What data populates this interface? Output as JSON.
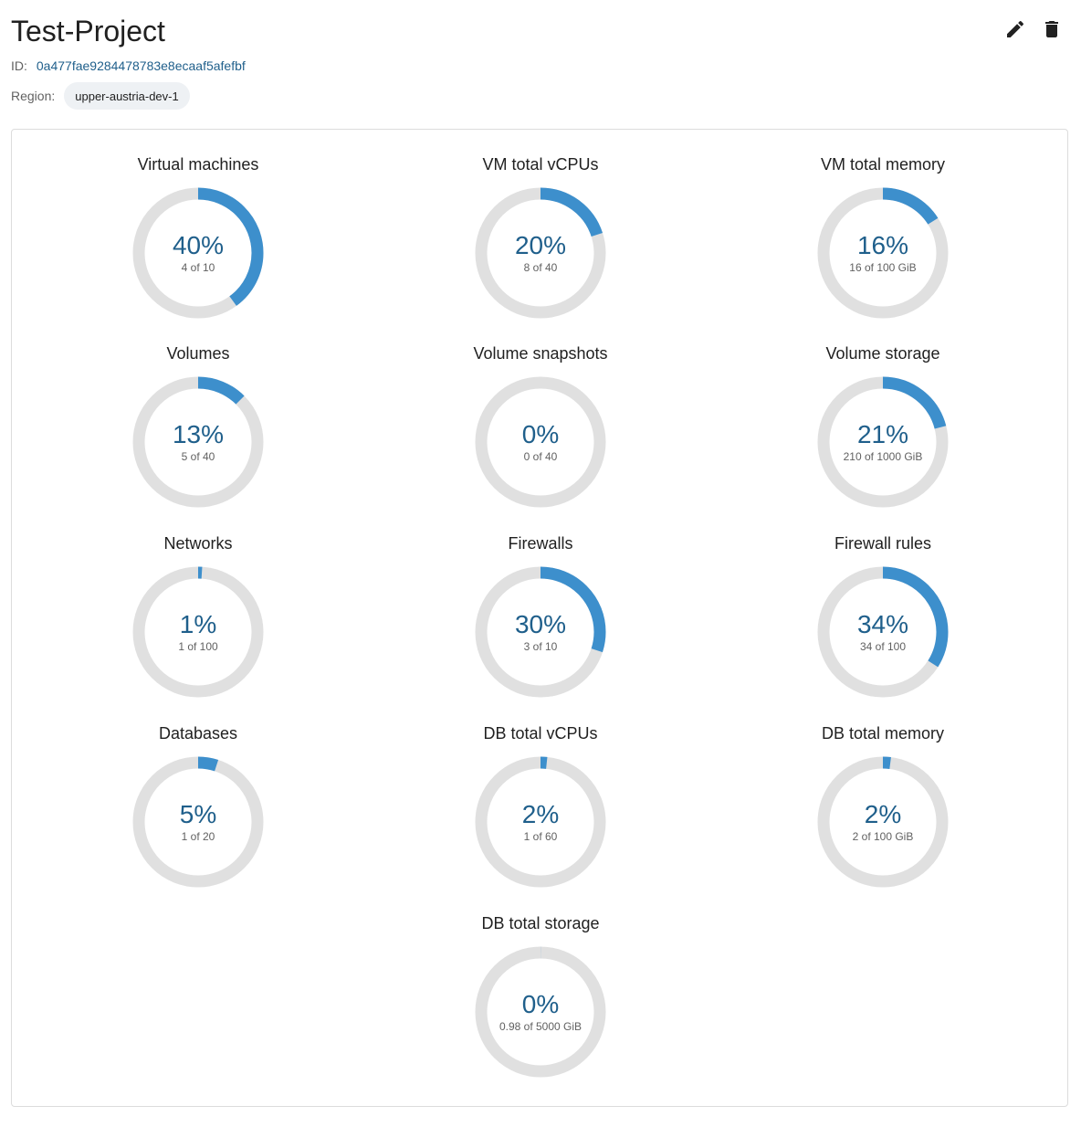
{
  "project": {
    "title": "Test-Project",
    "id_label": "ID:",
    "id": "0a477fae9284478783e8ecaaf5afefbf",
    "region_label": "Region:",
    "region": "upper-austria-dev-1"
  },
  "actions": {
    "edit": "edit-icon",
    "delete": "delete-icon"
  },
  "colors": {
    "accent": "#3d8fcc",
    "track": "#e0e0e0",
    "value_text": "#1f5f8b"
  },
  "quotas": [
    {
      "title": "Virtual machines",
      "percent": "40%",
      "detail": "4 of 10",
      "used": 4,
      "limit": 10
    },
    {
      "title": "VM total vCPUs",
      "percent": "20%",
      "detail": "8 of 40",
      "used": 8,
      "limit": 40
    },
    {
      "title": "VM total memory",
      "percent": "16%",
      "detail": "16 of 100 GiB",
      "used": 16,
      "limit": 100
    },
    {
      "title": "Volumes",
      "percent": "13%",
      "detail": "5 of 40",
      "used": 5,
      "limit": 40
    },
    {
      "title": "Volume snapshots",
      "percent": "0%",
      "detail": "0 of 40",
      "used": 0,
      "limit": 40
    },
    {
      "title": "Volume storage",
      "percent": "21%",
      "detail": "210 of 1000 GiB",
      "used": 210,
      "limit": 1000
    },
    {
      "title": "Networks",
      "percent": "1%",
      "detail": "1 of 100",
      "used": 1,
      "limit": 100
    },
    {
      "title": "Firewalls",
      "percent": "30%",
      "detail": "3 of 10",
      "used": 3,
      "limit": 10
    },
    {
      "title": "Firewall rules",
      "percent": "34%",
      "detail": "34 of 100",
      "used": 34,
      "limit": 100
    },
    {
      "title": "Databases",
      "percent": "5%",
      "detail": "1 of 20",
      "used": 1,
      "limit": 20
    },
    {
      "title": "DB total vCPUs",
      "percent": "2%",
      "detail": "1 of 60",
      "used": 1,
      "limit": 60
    },
    {
      "title": "DB total memory",
      "percent": "2%",
      "detail": "2 of 100 GiB",
      "used": 2,
      "limit": 100
    },
    {
      "title": "DB total storage",
      "percent": "0%",
      "detail": "0.98 of 5000 GiB",
      "used": 0.98,
      "limit": 5000
    }
  ]
}
